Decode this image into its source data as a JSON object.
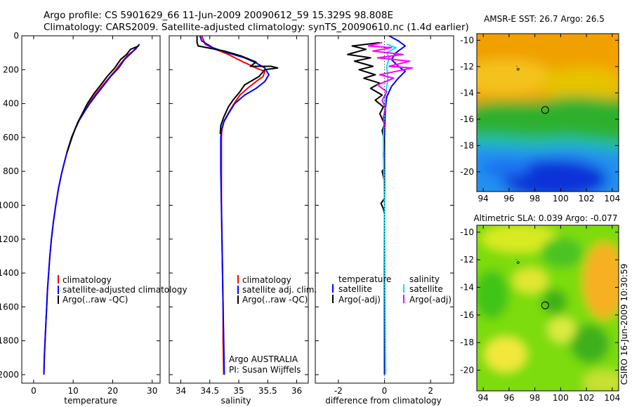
{
  "figure": {
    "title_line1": "Argo profile: CS 5901629_66 11-Jun-2009 20090612_59 15.329S 98.808E",
    "title_line2": "Climatology: CARS2009. Satellite-adjusted climatology: synTS_20090610.nc (1.4d earlier)",
    "credit": "CSIRO 16-Jun-2009 10:30:59"
  },
  "colors": {
    "climatology": "#ff0000",
    "satellite": "#0000ff",
    "argo": "#000000",
    "salinity_satellite": "#00e5ee",
    "salinity_argo": "#ff00ff"
  },
  "chart_data": [
    {
      "id": "temperature",
      "type": "line",
      "xlabel": "temperature",
      "xlim": [
        -3,
        32
      ],
      "ylim": [
        2050,
        0
      ],
      "xticks": [
        0,
        10,
        20,
        30
      ],
      "yticks": [
        0,
        200,
        400,
        600,
        800,
        1000,
        1200,
        1400,
        1600,
        1800,
        2000
      ],
      "legend": [
        "climatology",
        "satellite-adjusted climatology",
        "Argo(..raw -QC)"
      ],
      "series": [
        {
          "name": "climatology",
          "color": "#ff0000",
          "points": [
            [
              26.7,
              50
            ],
            [
              25.8,
              80
            ],
            [
              24,
              110
            ],
            [
              22.5,
              150
            ],
            [
              20.8,
              200
            ],
            [
              19,
              250
            ],
            [
              17.2,
              300
            ],
            [
              15.5,
              350
            ],
            [
              14,
              400
            ],
            [
              12.8,
              450
            ],
            [
              11.5,
              500
            ],
            [
              10.5,
              550
            ],
            [
              9.7,
              600
            ],
            [
              8.3,
              700
            ],
            [
              7.2,
              800
            ],
            [
              6.3,
              900
            ],
            [
              5.6,
              1000
            ],
            [
              5,
              1100
            ],
            [
              4.5,
              1200
            ],
            [
              4.1,
              1300
            ],
            [
              3.8,
              1400
            ],
            [
              3.5,
              1500
            ],
            [
              3.3,
              1600
            ],
            [
              3.1,
              1700
            ],
            [
              2.9,
              1800
            ],
            [
              2.7,
              1900
            ],
            [
              2.6,
              2000
            ]
          ]
        },
        {
          "name": "satellite",
          "color": "#0000ff",
          "points": [
            [
              26.8,
              50
            ],
            [
              26,
              70
            ],
            [
              24.8,
              100
            ],
            [
              23,
              140
            ],
            [
              21.5,
              190
            ],
            [
              19.5,
              240
            ],
            [
              17.5,
              300
            ],
            [
              15.8,
              350
            ],
            [
              14.2,
              400
            ],
            [
              12.8,
              450
            ],
            [
              11.5,
              500
            ],
            [
              10.5,
              550
            ],
            [
              9.7,
              600
            ],
            [
              8.3,
              700
            ],
            [
              7.2,
              800
            ],
            [
              6.3,
              900
            ],
            [
              5.6,
              1000
            ],
            [
              5,
              1100
            ],
            [
              4.5,
              1200
            ],
            [
              4.1,
              1300
            ],
            [
              3.8,
              1400
            ],
            [
              3.5,
              1500
            ],
            [
              3.3,
              1600
            ],
            [
              3.1,
              1700
            ],
            [
              2.9,
              1800
            ],
            [
              2.7,
              1900
            ],
            [
              2.6,
              2000
            ]
          ]
        },
        {
          "name": "Argo",
          "color": "#000000",
          "points": [
            [
              26.6,
              60
            ],
            [
              24.5,
              80
            ],
            [
              23.5,
              110
            ],
            [
              22,
              140
            ],
            [
              20.5,
              190
            ],
            [
              18.6,
              240
            ],
            [
              17.3,
              280
            ],
            [
              15.3,
              340
            ],
            [
              13.6,
              400
            ],
            [
              12.3,
              460
            ],
            [
              11.2,
              510
            ],
            [
              10.3,
              560
            ],
            [
              9.6,
              600
            ],
            [
              8.4,
              690
            ]
          ]
        }
      ]
    },
    {
      "id": "salinity",
      "type": "line",
      "xlabel": "salinity",
      "xlim": [
        33.8,
        36.2
      ],
      "ylim": [
        2050,
        0
      ],
      "xticks": [
        34,
        34.5,
        35,
        35.5,
        36
      ],
      "legend": [
        "climatology",
        "satellite adj. clim.",
        "Argo(..raw -QC)"
      ],
      "annotation": [
        "Argo AUSTRALIA",
        "PI: Susan Wijffels"
      ],
      "series": [
        {
          "name": "climatology",
          "color": "#ff0000",
          "points": [
            [
              34.36,
              0
            ],
            [
              34.42,
              50
            ],
            [
              34.6,
              80
            ],
            [
              34.82,
              110
            ],
            [
              35.05,
              150
            ],
            [
              35.3,
              190
            ],
            [
              35.45,
              210
            ],
            [
              35.42,
              240
            ],
            [
              35.3,
              270
            ],
            [
              35.15,
              310
            ],
            [
              35.02,
              350
            ],
            [
              34.92,
              400
            ],
            [
              34.83,
              450
            ],
            [
              34.75,
              500
            ],
            [
              34.71,
              550
            ],
            [
              34.7,
              600
            ],
            [
              34.7,
              800
            ],
            [
              34.7,
              1000
            ],
            [
              34.71,
              1200
            ],
            [
              34.72,
              1400
            ],
            [
              34.73,
              1600
            ],
            [
              34.73,
              1800
            ],
            [
              34.74,
              2000
            ]
          ]
        },
        {
          "name": "satellite",
          "color": "#0000ff",
          "points": [
            [
              34.33,
              0
            ],
            [
              34.36,
              30
            ],
            [
              34.55,
              70
            ],
            [
              34.8,
              100
            ],
            [
              35.1,
              130
            ],
            [
              35.3,
              160
            ],
            [
              35.45,
              190
            ],
            [
              35.52,
              230
            ],
            [
              35.45,
              270
            ],
            [
              35.3,
              310
            ],
            [
              35.1,
              350
            ],
            [
              34.93,
              400
            ],
            [
              34.82,
              460
            ],
            [
              34.74,
              510
            ],
            [
              34.7,
              560
            ],
            [
              34.69,
              600
            ],
            [
              34.69,
              800
            ],
            [
              34.7,
              1000
            ],
            [
              34.71,
              1200
            ],
            [
              34.72,
              1400
            ],
            [
              34.73,
              1600
            ],
            [
              34.74,
              1800
            ],
            [
              34.75,
              2000
            ]
          ]
        },
        {
          "name": "Argo",
          "color": "#000000",
          "points": [
            [
              34.28,
              0
            ],
            [
              34.28,
              40
            ],
            [
              34.3,
              60
            ],
            [
              34.45,
              70
            ],
            [
              34.75,
              90
            ],
            [
              35.05,
              120
            ],
            [
              35.3,
              155
            ],
            [
              35.2,
              180
            ],
            [
              35.56,
              180
            ],
            [
              35.67,
              190
            ],
            [
              35.45,
              200
            ],
            [
              35.35,
              240
            ],
            [
              35.1,
              290
            ],
            [
              35.02,
              330
            ],
            [
              34.9,
              380
            ],
            [
              34.82,
              420
            ],
            [
              34.74,
              480
            ],
            [
              34.69,
              530
            ],
            [
              34.68,
              580
            ]
          ]
        }
      ]
    },
    {
      "id": "difference",
      "type": "line",
      "xlabel": "difference from climatology",
      "xlim": [
        -3,
        3
      ],
      "ylim": [
        2050,
        0
      ],
      "xticks": [
        -2,
        0,
        2
      ],
      "legend_temperature": {
        "title": "temperature",
        "items": [
          "satellite",
          "Argo(-adj)"
        ]
      },
      "legend_salinity": {
        "title": "salinity",
        "items": [
          "satellite",
          "Argo(-adj)"
        ]
      },
      "series": [
        {
          "name": "temperature satellite",
          "color": "#0000ff",
          "points": [
            [
              0.2,
              0
            ],
            [
              0.6,
              30
            ],
            [
              0.9,
              60
            ],
            [
              0.5,
              100
            ],
            [
              0.3,
              140
            ],
            [
              0.6,
              180
            ],
            [
              0.9,
              210
            ],
            [
              0.6,
              250
            ],
            [
              0.3,
              300
            ],
            [
              0.1,
              360
            ],
            [
              0.05,
              420
            ],
            [
              0.02,
              500
            ],
            [
              0,
              600
            ],
            [
              0,
              800
            ],
            [
              0,
              1000
            ],
            [
              0,
              1500
            ],
            [
              0,
              2000
            ]
          ]
        },
        {
          "name": "temperature Argo",
          "color": "#000000",
          "points": [
            [
              -0.2,
              40
            ],
            [
              -1.4,
              60
            ],
            [
              -0.8,
              80
            ],
            [
              -1.6,
              110
            ],
            [
              -0.6,
              130
            ],
            [
              -1.3,
              150
            ],
            [
              -0.5,
              180
            ],
            [
              -1.1,
              200
            ],
            [
              -0.4,
              230
            ],
            [
              -0.9,
              250
            ],
            [
              -0.2,
              280
            ],
            [
              -0.6,
              310
            ],
            [
              -0.1,
              350
            ],
            [
              -0.4,
              380
            ],
            [
              -0.05,
              420
            ],
            [
              -0.2,
              460
            ],
            [
              0,
              520
            ],
            [
              -0.1,
              560
            ],
            [
              0,
              620
            ],
            [
              -0.05,
              700
            ],
            [
              0,
              780
            ],
            [
              -0.1,
              800
            ],
            [
              0,
              860
            ],
            [
              0,
              960
            ],
            [
              -0.15,
              990
            ],
            [
              -0.05,
              1020
            ],
            [
              0,
              1050
            ]
          ]
        },
        {
          "name": "salinity satellite",
          "color": "#00e5ee",
          "points": [
            [
              0.1,
              50
            ],
            [
              0.5,
              70
            ],
            [
              0.1,
              100
            ],
            [
              0.2,
              130
            ],
            [
              0.1,
              180
            ],
            [
              0.15,
              250
            ],
            [
              0.05,
              350
            ],
            [
              0,
              450
            ],
            [
              -0.05,
              600
            ],
            [
              -0.03,
              800
            ],
            [
              0,
              1000
            ],
            [
              0.02,
              1500
            ],
            [
              0.05,
              2000
            ]
          ]
        },
        {
          "name": "salinity Argo",
          "color": "#ff00ff",
          "points": [
            [
              -0.1,
              40
            ],
            [
              -0.7,
              60
            ],
            [
              0.3,
              70
            ],
            [
              -0.5,
              90
            ],
            [
              0.8,
              110
            ],
            [
              -0.3,
              130
            ],
            [
              1.1,
              150
            ],
            [
              0.2,
              180
            ],
            [
              1.2,
              190
            ],
            [
              0.5,
              210
            ],
            [
              -0.2,
              230
            ],
            [
              0.4,
              250
            ],
            [
              -0.3,
              290
            ],
            [
              0.1,
              330
            ],
            [
              -0.1,
              380
            ],
            [
              0.05,
              430
            ],
            [
              -0.05,
              480
            ],
            [
              0,
              550
            ]
          ]
        }
      ]
    },
    {
      "id": "sst_map",
      "type": "heatmap",
      "title": "AMSR-E SST: 26.7 Argo: 26.5",
      "xlim": [
        93.5,
        104.5
      ],
      "ylim": [
        -21.5,
        -9.5
      ],
      "xticks": [
        94,
        96,
        98,
        100,
        102,
        104
      ],
      "yticks": [
        -10,
        -12,
        -14,
        -16,
        -18,
        -20
      ],
      "marker": [
        98.8,
        -15.3
      ],
      "track": [
        96.7,
        -12.2
      ]
    },
    {
      "id": "sla_map",
      "type": "heatmap",
      "title": "Altimetric SLA: 0.039 Argo: -0.077",
      "xlim": [
        93.5,
        104.5
      ],
      "ylim": [
        -21.5,
        -9.5
      ],
      "xticks": [
        94,
        96,
        98,
        100,
        102,
        104
      ],
      "yticks": [
        -10,
        -12,
        -14,
        -16,
        -18,
        -20
      ],
      "marker": [
        98.8,
        -15.3
      ],
      "track": [
        96.7,
        -12.2
      ]
    }
  ]
}
